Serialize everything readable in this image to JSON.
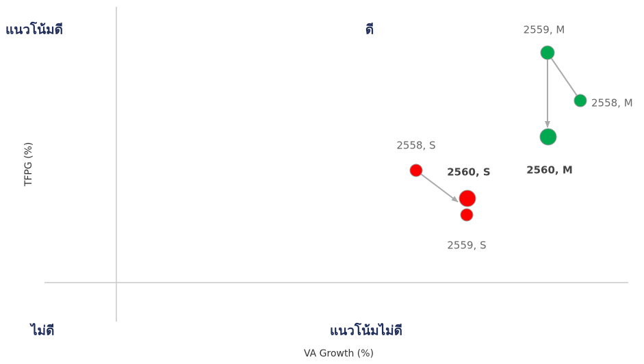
{
  "quadrants": {
    "top_left": "แนวโน้มดี",
    "top_right": "ดี",
    "bottom_left": "ไม่ดี",
    "bottom_right": "แนวโน้มไม่ดี"
  },
  "axes": {
    "x_label": "VA Growth (%)",
    "y_label": "TFPG (%)"
  },
  "points": [
    {
      "label": "2559, M"
    },
    {
      "label": "2558, M"
    },
    {
      "label": "2560, M"
    },
    {
      "label": "2558, S"
    },
    {
      "label": "2560, S"
    },
    {
      "label": "2559, S"
    }
  ]
}
